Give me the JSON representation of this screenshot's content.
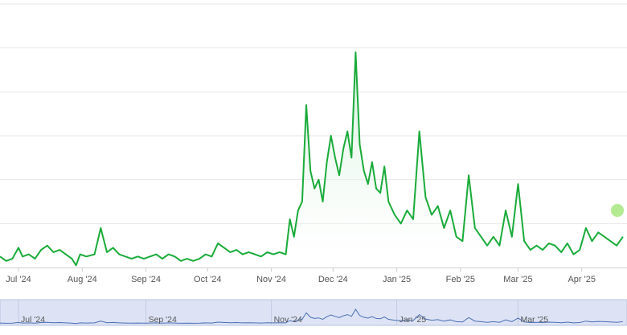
{
  "chart_data": {
    "type": "area",
    "title": "",
    "xlabel": "",
    "ylabel": "",
    "grid": true,
    "x_tick_labels": [
      "Jul '24",
      "Aug '24",
      "Sep '24",
      "Oct '24",
      "Nov '24",
      "Dec '24",
      "Jan '25",
      "Feb '25",
      "Mar '25",
      "Apr '25"
    ],
    "navigator_tick_labels": [
      "Jul '24",
      "Sep '24",
      "Nov '24",
      "Jan '25",
      "Mar '25"
    ],
    "x_range": [
      "2024-06-22",
      "2025-04-23"
    ],
    "y_range": [
      0,
      6
    ],
    "colors": {
      "line": "#1aab3a",
      "area_top": "#c9ecd1",
      "grid": "#e6e6e6",
      "navigator_bg": "#dde3f5",
      "navigator_line": "#4a6fb3",
      "marker": "#9be36c"
    },
    "series": [
      {
        "values": [
          [
            "2024-06-22",
            0.25
          ],
          [
            "2024-06-25",
            0.15
          ],
          [
            "2024-06-28",
            0.2
          ],
          [
            "2024-07-01",
            0.45
          ],
          [
            "2024-07-03",
            0.25
          ],
          [
            "2024-07-06",
            0.3
          ],
          [
            "2024-07-09",
            0.2
          ],
          [
            "2024-07-12",
            0.4
          ],
          [
            "2024-07-15",
            0.5
          ],
          [
            "2024-07-18",
            0.35
          ],
          [
            "2024-07-21",
            0.4
          ],
          [
            "2024-07-24",
            0.3
          ],
          [
            "2024-07-27",
            0.2
          ],
          [
            "2024-07-29",
            0.05
          ],
          [
            "2024-07-31",
            0.3
          ],
          [
            "2024-08-03",
            0.25
          ],
          [
            "2024-08-07",
            0.3
          ],
          [
            "2024-08-10",
            0.9
          ],
          [
            "2024-08-13",
            0.35
          ],
          [
            "2024-08-16",
            0.45
          ],
          [
            "2024-08-19",
            0.3
          ],
          [
            "2024-08-22",
            0.25
          ],
          [
            "2024-08-25",
            0.2
          ],
          [
            "2024-08-28",
            0.25
          ],
          [
            "2024-08-31",
            0.2
          ],
          [
            "2024-09-03",
            0.25
          ],
          [
            "2024-09-06",
            0.3
          ],
          [
            "2024-09-09",
            0.2
          ],
          [
            "2024-09-12",
            0.3
          ],
          [
            "2024-09-15",
            0.25
          ],
          [
            "2024-09-18",
            0.15
          ],
          [
            "2024-09-21",
            0.2
          ],
          [
            "2024-09-24",
            0.15
          ],
          [
            "2024-09-27",
            0.2
          ],
          [
            "2024-09-30",
            0.3
          ],
          [
            "2024-10-03",
            0.25
          ],
          [
            "2024-10-06",
            0.55
          ],
          [
            "2024-10-09",
            0.45
          ],
          [
            "2024-10-12",
            0.35
          ],
          [
            "2024-10-15",
            0.4
          ],
          [
            "2024-10-18",
            0.3
          ],
          [
            "2024-10-21",
            0.35
          ],
          [
            "2024-10-24",
            0.3
          ],
          [
            "2024-10-27",
            0.25
          ],
          [
            "2024-10-30",
            0.35
          ],
          [
            "2024-11-02",
            0.3
          ],
          [
            "2024-11-05",
            0.35
          ],
          [
            "2024-11-08",
            0.3
          ],
          [
            "2024-11-10",
            1.1
          ],
          [
            "2024-11-12",
            0.7
          ],
          [
            "2024-11-14",
            1.3
          ],
          [
            "2024-11-16",
            1.5
          ],
          [
            "2024-11-18",
            3.7
          ],
          [
            "2024-11-20",
            2.2
          ],
          [
            "2024-11-22",
            1.8
          ],
          [
            "2024-11-24",
            2.0
          ],
          [
            "2024-11-26",
            1.5
          ],
          [
            "2024-11-28",
            2.4
          ],
          [
            "2024-11-30",
            3.0
          ],
          [
            "2024-12-02",
            2.5
          ],
          [
            "2024-12-04",
            2.1
          ],
          [
            "2024-12-06",
            2.7
          ],
          [
            "2024-12-08",
            3.1
          ],
          [
            "2024-12-10",
            2.5
          ],
          [
            "2024-12-12",
            4.9
          ],
          [
            "2024-12-14",
            2.8
          ],
          [
            "2024-12-16",
            2.2
          ],
          [
            "2024-12-18",
            1.9
          ],
          [
            "2024-12-20",
            2.4
          ],
          [
            "2024-12-22",
            1.8
          ],
          [
            "2024-12-24",
            1.7
          ],
          [
            "2024-12-26",
            2.3
          ],
          [
            "2024-12-28",
            1.5
          ],
          [
            "2024-12-31",
            1.2
          ],
          [
            "2025-01-03",
            1.0
          ],
          [
            "2025-01-06",
            1.3
          ],
          [
            "2025-01-09",
            1.1
          ],
          [
            "2025-01-12",
            3.1
          ],
          [
            "2025-01-15",
            1.6
          ],
          [
            "2025-01-18",
            1.2
          ],
          [
            "2025-01-21",
            1.4
          ],
          [
            "2025-01-24",
            0.9
          ],
          [
            "2025-01-27",
            1.3
          ],
          [
            "2025-01-30",
            0.7
          ],
          [
            "2025-02-02",
            0.6
          ],
          [
            "2025-02-05",
            2.1
          ],
          [
            "2025-02-08",
            0.9
          ],
          [
            "2025-02-11",
            0.7
          ],
          [
            "2025-02-14",
            0.5
          ],
          [
            "2025-02-17",
            0.7
          ],
          [
            "2025-02-20",
            0.5
          ],
          [
            "2025-02-23",
            1.3
          ],
          [
            "2025-02-26",
            0.7
          ],
          [
            "2025-03-01",
            1.9
          ],
          [
            "2025-03-04",
            0.6
          ],
          [
            "2025-03-07",
            0.4
          ],
          [
            "2025-03-10",
            0.5
          ],
          [
            "2025-03-13",
            0.4
          ],
          [
            "2025-03-16",
            0.55
          ],
          [
            "2025-03-19",
            0.5
          ],
          [
            "2025-03-22",
            0.35
          ],
          [
            "2025-03-25",
            0.55
          ],
          [
            "2025-03-28",
            0.3
          ],
          [
            "2025-03-31",
            0.4
          ],
          [
            "2025-04-03",
            0.9
          ],
          [
            "2025-04-06",
            0.6
          ],
          [
            "2025-04-09",
            0.8
          ],
          [
            "2025-04-12",
            0.7
          ],
          [
            "2025-04-15",
            0.6
          ],
          [
            "2025-04-18",
            0.5
          ],
          [
            "2025-04-21",
            0.7
          ]
        ]
      }
    ]
  }
}
